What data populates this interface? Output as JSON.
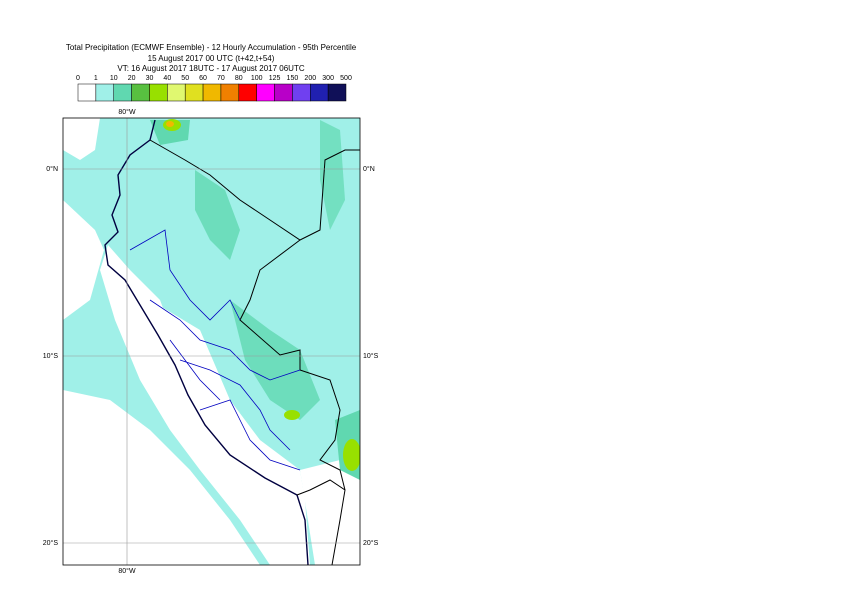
{
  "header": {
    "title": "Total Precipitation (ECMWF Ensemble) - 12 Hourly Accumulation - 95th Percentile",
    "run": "15 August 2017 00 UTC (t+42,t+54)",
    "valid": "VT: 16 August 2017 18UTC - 17 August 2017 06UTC"
  },
  "legend": {
    "levels": [
      0,
      1,
      10,
      20,
      30,
      40,
      50,
      60,
      70,
      80,
      100,
      125,
      150,
      200,
      300,
      500
    ],
    "colors": [
      "#ffffff",
      "#a0f0e8",
      "#60d8b0",
      "#58c040",
      "#98e000",
      "#e0f870",
      "#e0e020",
      "#f0b800",
      "#f08000",
      "#ff0000",
      "#ff00ff",
      "#b800c8",
      "#7040f0",
      "#2020b0",
      "#101058"
    ]
  },
  "map": {
    "lon_label": "80°W",
    "lat_labels": [
      "0°N",
      "10°S",
      "20°S"
    ]
  }
}
